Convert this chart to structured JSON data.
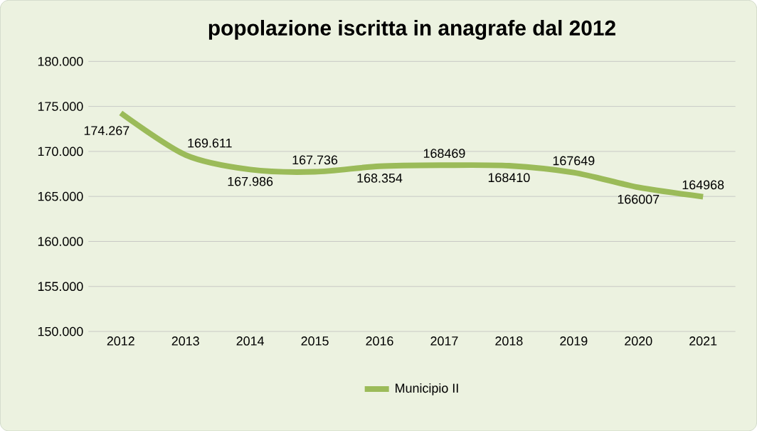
{
  "chart_data": {
    "type": "line",
    "title": "popolazione iscritta in anagrafe dal 2012",
    "categories": [
      "2012",
      "2013",
      "2014",
      "2015",
      "2016",
      "2017",
      "2018",
      "2019",
      "2020",
      "2021"
    ],
    "series": [
      {
        "name": "Municipio II",
        "color": "#9bbb59",
        "values": [
          174267,
          169611,
          167986,
          167736,
          168354,
          168469,
          168410,
          167649,
          166007,
          164968
        ],
        "value_labels": [
          "174.267",
          "169.611",
          "167.986",
          "167.736",
          "168.354",
          "168469",
          "168410",
          "167649",
          "166007",
          "164968"
        ]
      }
    ],
    "ylim": [
      150000,
      180000
    ],
    "yticks": [
      {
        "value": 150000,
        "label": "150.000"
      },
      {
        "value": 155000,
        "label": "155.000"
      },
      {
        "value": 160000,
        "label": "160.000"
      },
      {
        "value": 165000,
        "label": "165.000"
      },
      {
        "value": 170000,
        "label": "170.000"
      },
      {
        "value": 175000,
        "label": "175.000"
      },
      {
        "value": 180000,
        "label": "180.000"
      }
    ],
    "grid": "y",
    "legend": "bottom"
  }
}
